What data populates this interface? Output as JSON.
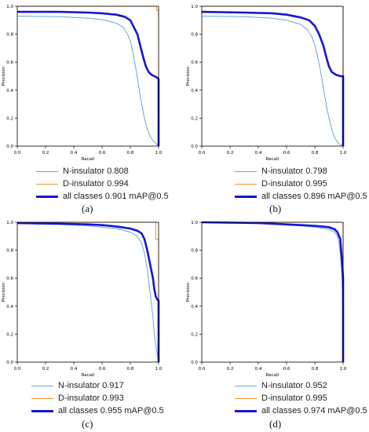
{
  "colors": {
    "n_insulator": "#6aa6d8",
    "d_insulator": "#f0922b",
    "all_classes": "#1515d6"
  },
  "chart_data": [
    {
      "type": "line",
      "panel_label": "(a)",
      "xlabel": "Recall",
      "ylabel": "Precision",
      "xlim": [
        0,
        1
      ],
      "ylim": [
        0,
        1
      ],
      "xticks": [
        "0.0",
        "0.2",
        "0.4",
        "0.6",
        "0.8",
        "1.0"
      ],
      "yticks": [
        "0.0",
        "0.2",
        "0.4",
        "0.6",
        "0.8",
        "1.0"
      ],
      "legend_position": "below",
      "series": [
        {
          "name": "N-insulator 0.808",
          "color_key": "n_insulator",
          "points": [
            [
              0,
              0.93
            ],
            [
              0.3,
              0.925
            ],
            [
              0.5,
              0.915
            ],
            [
              0.6,
              0.905
            ],
            [
              0.7,
              0.88
            ],
            [
              0.75,
              0.85
            ],
            [
              0.78,
              0.8
            ],
            [
              0.8,
              0.75
            ],
            [
              0.82,
              0.66
            ],
            [
              0.84,
              0.55
            ],
            [
              0.86,
              0.42
            ],
            [
              0.88,
              0.3
            ],
            [
              0.9,
              0.2
            ],
            [
              0.92,
              0.12
            ],
            [
              0.94,
              0.07
            ],
            [
              0.96,
              0.04
            ],
            [
              0.98,
              0.02
            ],
            [
              1.0,
              0.0
            ]
          ]
        },
        {
          "name": "D-insulator 0.994",
          "color_key": "d_insulator",
          "points": [
            [
              0,
              1.0
            ],
            [
              0.985,
              1.0
            ],
            [
              0.985,
              0.97
            ],
            [
              1.0,
              0.97
            ],
            [
              1.0,
              0.0
            ]
          ]
        },
        {
          "name": "all classes 0.901 mAP@0.5",
          "color_key": "all_classes",
          "points": [
            [
              0,
              0.96
            ],
            [
              0.3,
              0.96
            ],
            [
              0.5,
              0.955
            ],
            [
              0.6,
              0.95
            ],
            [
              0.7,
              0.94
            ],
            [
              0.76,
              0.925
            ],
            [
              0.8,
              0.9
            ],
            [
              0.82,
              0.86
            ],
            [
              0.85,
              0.8
            ],
            [
              0.87,
              0.72
            ],
            [
              0.89,
              0.64
            ],
            [
              0.91,
              0.57
            ],
            [
              0.93,
              0.53
            ],
            [
              0.95,
              0.51
            ],
            [
              0.97,
              0.5
            ],
            [
              0.99,
              0.49
            ],
            [
              1.0,
              0.48
            ],
            [
              1.0,
              0.0
            ]
          ]
        }
      ]
    },
    {
      "type": "line",
      "panel_label": "(b)",
      "xlabel": "Recall",
      "ylabel": "Precision",
      "xlim": [
        0,
        1
      ],
      "ylim": [
        0,
        1
      ],
      "xticks": [
        "0.0",
        "0.2",
        "0.4",
        "0.6",
        "0.8",
        "1.0"
      ],
      "yticks": [
        "0.0",
        "0.2",
        "0.4",
        "0.6",
        "0.8",
        "1.0"
      ],
      "legend_position": "below",
      "series": [
        {
          "name": "N-insulator 0.798",
          "color_key": "n_insulator",
          "points": [
            [
              0,
              0.93
            ],
            [
              0.3,
              0.925
            ],
            [
              0.5,
              0.915
            ],
            [
              0.6,
              0.9
            ],
            [
              0.7,
              0.87
            ],
            [
              0.75,
              0.83
            ],
            [
              0.78,
              0.78
            ],
            [
              0.8,
              0.72
            ],
            [
              0.82,
              0.64
            ],
            [
              0.84,
              0.54
            ],
            [
              0.86,
              0.42
            ],
            [
              0.88,
              0.3
            ],
            [
              0.9,
              0.2
            ],
            [
              0.92,
              0.12
            ],
            [
              0.94,
              0.06
            ],
            [
              0.96,
              0.03
            ],
            [
              0.98,
              0.01
            ],
            [
              1.0,
              0.0
            ]
          ]
        },
        {
          "name": "D-insulator 0.995",
          "color_key": "d_insulator",
          "points": [
            [
              0,
              1.0
            ],
            [
              1.0,
              1.0
            ],
            [
              1.0,
              0.0
            ]
          ]
        },
        {
          "name": "all classes 0.896 mAP@0.5",
          "color_key": "all_classes",
          "points": [
            [
              0,
              0.96
            ],
            [
              0.3,
              0.955
            ],
            [
              0.5,
              0.95
            ],
            [
              0.6,
              0.94
            ],
            [
              0.7,
              0.92
            ],
            [
              0.76,
              0.9
            ],
            [
              0.8,
              0.86
            ],
            [
              0.83,
              0.8
            ],
            [
              0.86,
              0.72
            ],
            [
              0.88,
              0.64
            ],
            [
              0.9,
              0.57
            ],
            [
              0.92,
              0.53
            ],
            [
              0.95,
              0.51
            ],
            [
              0.98,
              0.5
            ],
            [
              1.0,
              0.5
            ],
            [
              1.0,
              0.0
            ]
          ]
        }
      ]
    },
    {
      "type": "line",
      "panel_label": "(c)",
      "xlabel": "Recall",
      "ylabel": "Precision",
      "xlim": [
        0,
        1
      ],
      "ylim": [
        0,
        1
      ],
      "xticks": [
        "0.0",
        "0.2",
        "0.4",
        "0.6",
        "0.8",
        "1.0"
      ],
      "yticks": [
        "0.0",
        "0.2",
        "0.4",
        "0.6",
        "0.8",
        "1.0"
      ],
      "legend_position": "below",
      "series": [
        {
          "name": "N-insulator 0.917",
          "color_key": "n_insulator",
          "points": [
            [
              0,
              0.99
            ],
            [
              0.3,
              0.985
            ],
            [
              0.5,
              0.975
            ],
            [
              0.6,
              0.965
            ],
            [
              0.7,
              0.955
            ],
            [
              0.8,
              0.93
            ],
            [
              0.85,
              0.9
            ],
            [
              0.88,
              0.85
            ],
            [
              0.9,
              0.78
            ],
            [
              0.92,
              0.66
            ],
            [
              0.94,
              0.5
            ],
            [
              0.96,
              0.32
            ],
            [
              0.97,
              0.2
            ],
            [
              0.98,
              0.12
            ],
            [
              0.99,
              0.06
            ],
            [
              1.0,
              0.0
            ]
          ]
        },
        {
          "name": "D-insulator 0.993",
          "color_key": "d_insulator",
          "points": [
            [
              0,
              1.0
            ],
            [
              0.98,
              1.0
            ],
            [
              0.98,
              0.88
            ],
            [
              1.0,
              0.88
            ],
            [
              1.0,
              0.0
            ]
          ]
        },
        {
          "name": "all classes 0.955 mAP@0.5",
          "color_key": "all_classes",
          "points": [
            [
              0,
              0.995
            ],
            [
              0.3,
              0.99
            ],
            [
              0.5,
              0.985
            ],
            [
              0.6,
              0.98
            ],
            [
              0.7,
              0.97
            ],
            [
              0.8,
              0.955
            ],
            [
              0.85,
              0.94
            ],
            [
              0.88,
              0.92
            ],
            [
              0.9,
              0.88
            ],
            [
              0.92,
              0.8
            ],
            [
              0.94,
              0.7
            ],
            [
              0.96,
              0.6
            ],
            [
              0.97,
              0.52
            ],
            [
              0.98,
              0.47
            ],
            [
              0.99,
              0.45
            ],
            [
              1.0,
              0.44
            ],
            [
              1.0,
              0.0
            ]
          ]
        }
      ]
    },
    {
      "type": "line",
      "panel_label": "(d)",
      "xlabel": "Recall",
      "ylabel": "Precision",
      "xlim": [
        0,
        1
      ],
      "ylim": [
        0,
        1
      ],
      "xticks": [
        "0.0",
        "0.2",
        "0.4",
        "0.6",
        "0.8",
        "1.0"
      ],
      "yticks": [
        "0.0",
        "0.2",
        "0.4",
        "0.6",
        "0.8",
        "1.0"
      ],
      "legend_position": "below",
      "series": [
        {
          "name": "N-insulator 0.952",
          "color_key": "n_insulator",
          "points": [
            [
              0,
              1.0
            ],
            [
              0.3,
              1.0
            ],
            [
              0.5,
              0.99
            ],
            [
              0.6,
              0.98
            ],
            [
              0.7,
              0.975
            ],
            [
              0.8,
              0.965
            ],
            [
              0.9,
              0.95
            ],
            [
              0.94,
              0.93
            ],
            [
              0.96,
              0.9
            ],
            [
              0.97,
              0.86
            ],
            [
              0.98,
              0.78
            ],
            [
              0.99,
              0.65
            ],
            [
              0.995,
              0.5
            ],
            [
              1.0,
              0.2
            ],
            [
              1.0,
              0.0
            ]
          ]
        },
        {
          "name": "D-insulator 0.995",
          "color_key": "d_insulator",
          "points": [
            [
              0,
              1.0
            ],
            [
              1.0,
              1.0
            ],
            [
              1.0,
              0.0
            ]
          ]
        },
        {
          "name": "all classes 0.974 mAP@0.5",
          "color_key": "all_classes",
          "points": [
            [
              0,
              1.0
            ],
            [
              0.4,
              0.995
            ],
            [
              0.5,
              0.99
            ],
            [
              0.6,
              0.985
            ],
            [
              0.7,
              0.98
            ],
            [
              0.8,
              0.975
            ],
            [
              0.9,
              0.965
            ],
            [
              0.94,
              0.95
            ],
            [
              0.96,
              0.93
            ],
            [
              0.98,
              0.88
            ],
            [
              0.99,
              0.75
            ],
            [
              1.0,
              0.6
            ],
            [
              1.0,
              0.0
            ]
          ]
        }
      ]
    }
  ]
}
